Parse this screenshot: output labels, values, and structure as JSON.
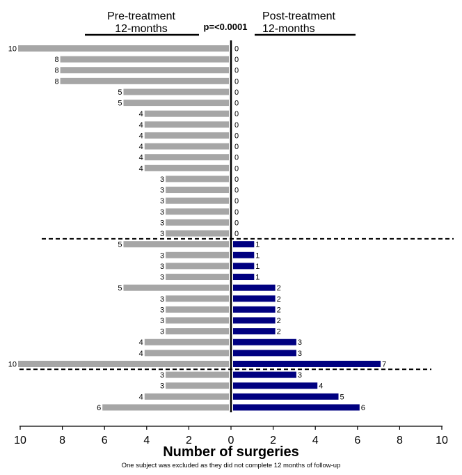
{
  "chart_data": {
    "type": "bar",
    "orientation": "horizontal-butterfly",
    "header": {
      "left_line1": "Pre-treatment",
      "left_line2": "12-months",
      "right_line1": "Post-treatment",
      "right_line2": "12-months",
      "pvalue": "p=<0.0001"
    },
    "xlabel": "Number of surgeries",
    "footnote": "One subject was excluded as they did not complete 12 months of follow-up",
    "xlim": [
      -10,
      10
    ],
    "xticks": [
      -10,
      -8,
      -6,
      -4,
      -2,
      0,
      2,
      4,
      6,
      8,
      10
    ],
    "xtick_labels": [
      "10",
      "8",
      "6",
      "4",
      "2",
      "0",
      "2",
      "4",
      "6",
      "8",
      "10"
    ],
    "series": [
      {
        "name": "Pre-treatment 12-months",
        "color": "#a6a6a6",
        "values": [
          10,
          8,
          8,
          8,
          5,
          5,
          4,
          4,
          4,
          4,
          4,
          4,
          3,
          3,
          3,
          3,
          3,
          3,
          5,
          3,
          3,
          3,
          5,
          3,
          3,
          3,
          3,
          4,
          4,
          10,
          3,
          3,
          4,
          6
        ]
      },
      {
        "name": "Post-treatment 12-months",
        "color": "#000080",
        "values": [
          0,
          0,
          0,
          0,
          0,
          0,
          0,
          0,
          0,
          0,
          0,
          0,
          0,
          0,
          0,
          0,
          0,
          0,
          1,
          1,
          1,
          1,
          2,
          2,
          2,
          2,
          2,
          3,
          3,
          7,
          3,
          4,
          5,
          6
        ]
      }
    ],
    "group_dividers_after_row": [
      17,
      29
    ]
  }
}
